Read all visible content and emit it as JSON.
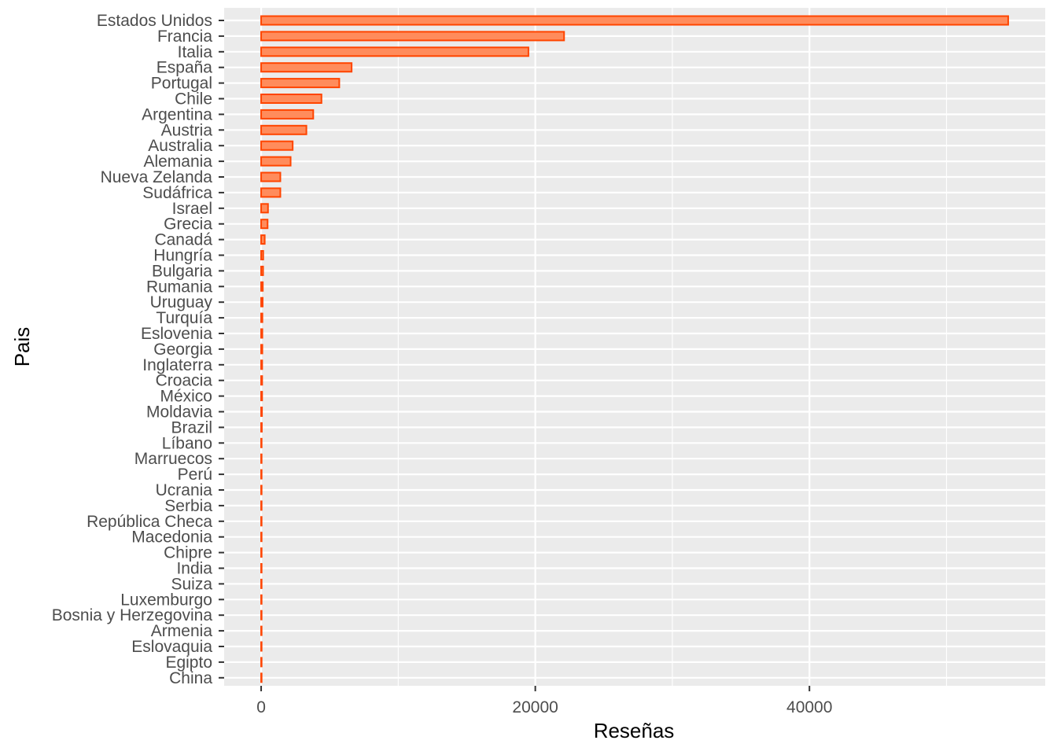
{
  "chart_data": {
    "type": "bar",
    "orientation": "horizontal",
    "xlabel": "Reseñas",
    "ylabel": "Pais",
    "xlim": [
      -2700,
      57200
    ],
    "x_ticks": [
      0,
      20000,
      40000
    ],
    "x_tick_labels": [
      "0",
      "20000",
      "40000"
    ],
    "grid": true,
    "bar_fill": "#ff8c5c",
    "bar_stroke": "#ff4500",
    "panel_background": "#ebebeb",
    "categories": [
      "Estados Unidos",
      "Francia",
      "Italia",
      "España",
      "Portugal",
      "Chile",
      "Argentina",
      "Austria",
      "Australia",
      "Alemania",
      "Nueva Zelanda",
      "Sudáfrica",
      "Israel",
      "Grecia",
      "Canadá",
      "Hungría",
      "Bulgaria",
      "Rumania",
      "Uruguay",
      "Turquía",
      "Eslovenia",
      "Georgia",
      "Inglaterra",
      "Croacia",
      "México",
      "Moldavia",
      "Brazil",
      "Líbano",
      "Marruecos",
      "Perú",
      "Ucrania",
      "Serbia",
      "República Checa",
      "Macedonia",
      "Chipre",
      "India",
      "Suiza",
      "Luxemburgo",
      "Bosnia y Herzegovina",
      "Armenia",
      "Eslovaquia",
      "Egipto",
      "China"
    ],
    "values": [
      54500,
      22100,
      19500,
      6600,
      5700,
      4400,
      3800,
      3300,
      2300,
      2150,
      1400,
      1400,
      500,
      470,
      260,
      150,
      140,
      120,
      110,
      90,
      87,
      86,
      74,
      73,
      70,
      60,
      50,
      35,
      28,
      16,
      14,
      12,
      12,
      12,
      11,
      9,
      7,
      6,
      2,
      2,
      1,
      1,
      1
    ]
  }
}
